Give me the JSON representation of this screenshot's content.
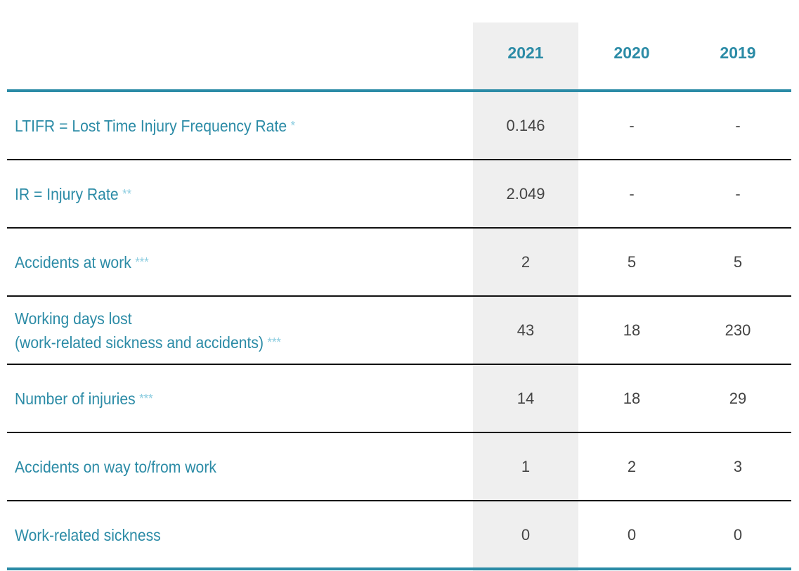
{
  "table": {
    "header": [
      "2021",
      "2020",
      "2019"
    ],
    "rows": [
      {
        "label": "LTIFR = Lost Time Injury Frequency Rate",
        "note": "*",
        "values": [
          "0.146",
          "-",
          "-"
        ]
      },
      {
        "label": "IR = Injury Rate",
        "note": "**",
        "values": [
          "2.049",
          "-",
          "-"
        ]
      },
      {
        "label": "Accidents at work",
        "note": "***",
        "values": [
          "2",
          "5",
          "5"
        ]
      },
      {
        "label": "Working days lost\n(work-related sickness and accidents)",
        "note": "***",
        "values": [
          "43",
          "18",
          "230"
        ]
      },
      {
        "label": "Number of injuries",
        "note": "***",
        "values": [
          "14",
          "18",
          "29"
        ]
      },
      {
        "label": "Accidents on way to/from work",
        "values": [
          "1",
          "2",
          "3"
        ]
      },
      {
        "label": "Work-related sickness",
        "values": [
          "0",
          "0",
          "0"
        ]
      }
    ]
  }
}
